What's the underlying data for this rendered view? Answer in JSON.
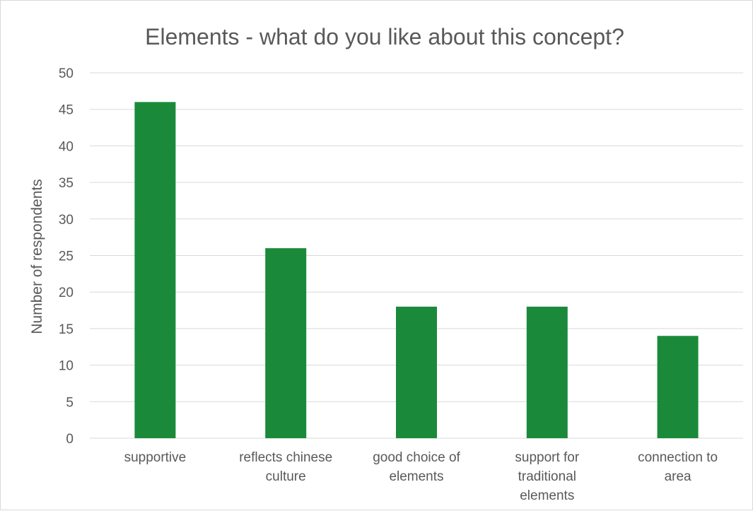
{
  "chart_data": {
    "type": "bar",
    "title": "Elements - what do you like about this concept?",
    "xlabel": "",
    "ylabel": "Number of respondents",
    "categories": [
      "supportive",
      "reflects chinese culture",
      "good choice of elements",
      "support for traditional elements",
      "connection to area"
    ],
    "category_lines": [
      [
        "supportive"
      ],
      [
        "reflects chinese",
        "culture"
      ],
      [
        "good choice of",
        "elements"
      ],
      [
        "support for",
        "traditional",
        "elements"
      ],
      [
        "connection to",
        "area"
      ]
    ],
    "values": [
      46,
      26,
      18,
      18,
      14
    ],
    "ylim": [
      0,
      50
    ],
    "yticks": [
      0,
      5,
      10,
      15,
      20,
      25,
      30,
      35,
      40,
      45,
      50
    ],
    "grid": true,
    "legend": "none",
    "bar_color": "#1a8a3a"
  }
}
